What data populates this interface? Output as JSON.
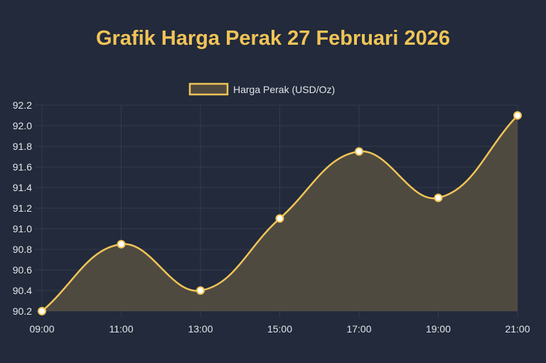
{
  "chart_data": {
    "type": "area",
    "title": "Grafik Harga Perak 27 Februari 2026",
    "categories": [
      "09:00",
      "11:00",
      "13:00",
      "15:00",
      "17:00",
      "19:00",
      "21:00"
    ],
    "series": [
      {
        "name": "Harga Perak (USD/Oz)",
        "values": [
          90.2,
          90.85,
          90.4,
          91.1,
          91.75,
          91.3,
          92.1
        ]
      }
    ],
    "ylim": [
      90.2,
      92.2
    ],
    "yticks": [
      "90.2",
      "90.4",
      "90.6",
      "90.8",
      "91.0",
      "91.2",
      "91.4",
      "91.6",
      "91.8",
      "92.0",
      "92.2"
    ],
    "xlabel": "",
    "ylabel": "",
    "grid": true,
    "legend": "top",
    "colors": {
      "line": "#f1c457",
      "fill": "#4f4a40",
      "background": "#222a3b",
      "grid": "#333b4c",
      "point": "#ffffff"
    }
  }
}
